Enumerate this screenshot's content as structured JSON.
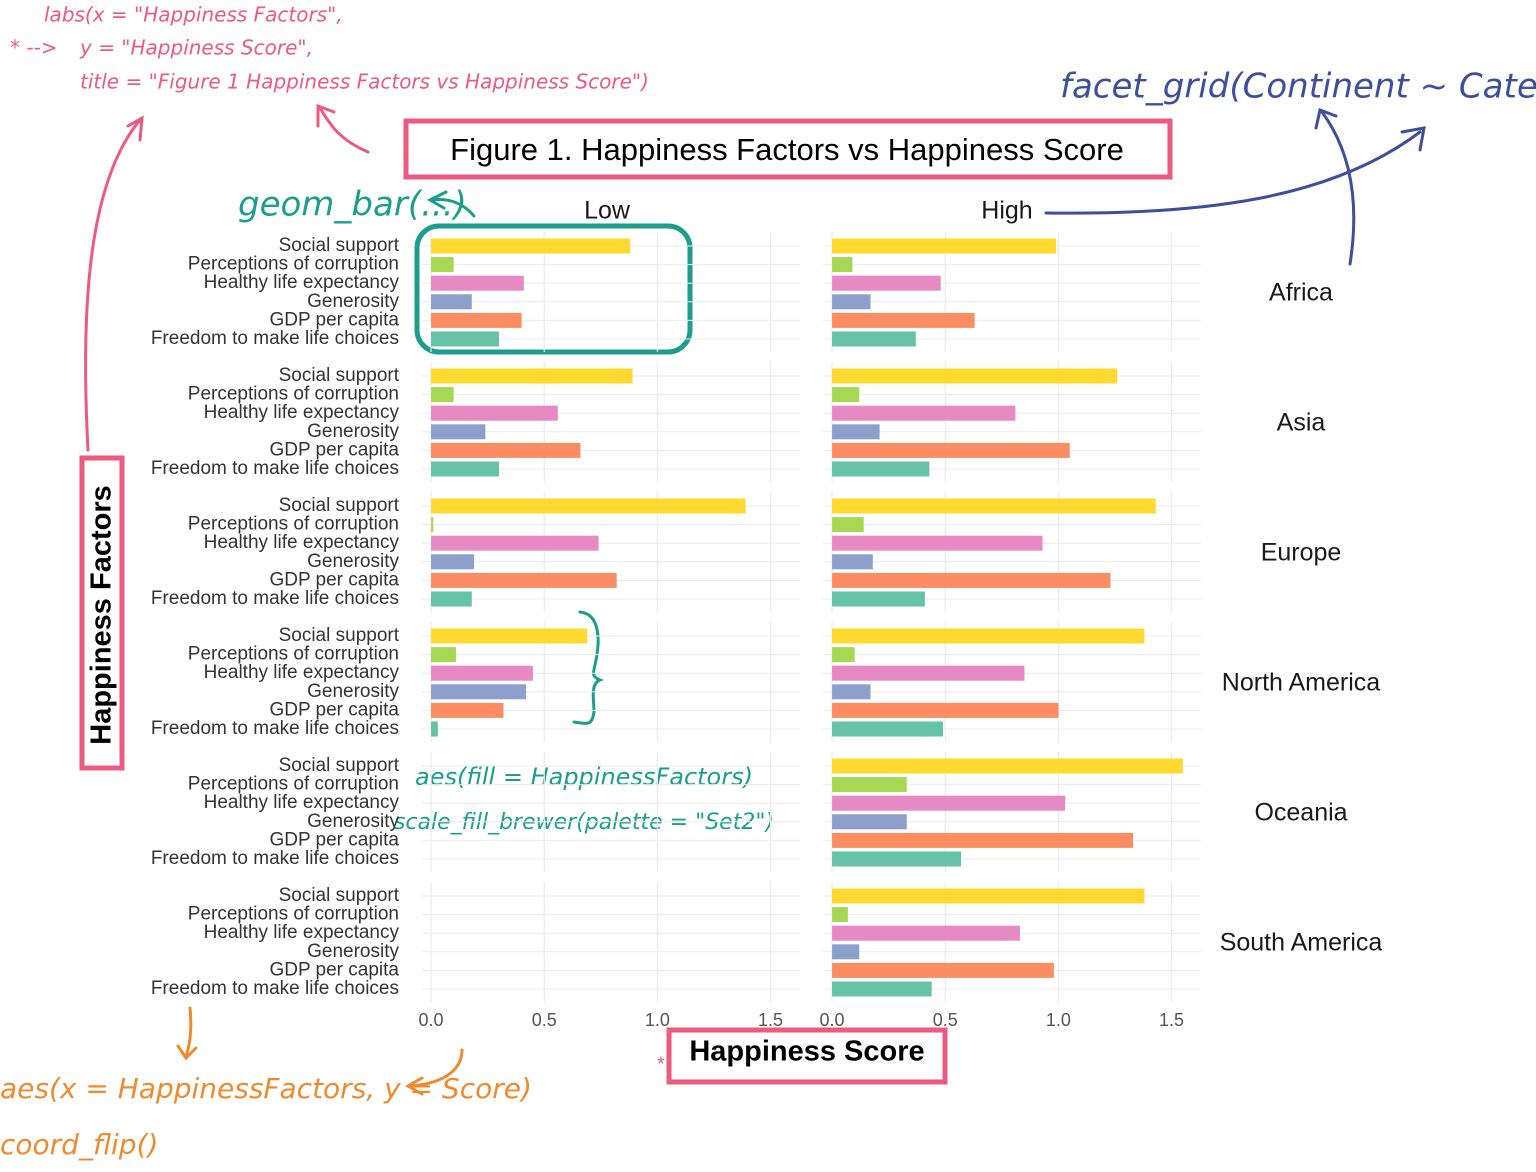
{
  "chart_data": {
    "type": "bar",
    "orientation": "horizontal",
    "title": "Figure 1. Happiness Factors vs Happiness Score",
    "x_label": "Happiness Score",
    "y_label": "Happiness Factors",
    "columns": [
      "Low",
      "High"
    ],
    "rows": [
      "Africa",
      "Asia",
      "Europe",
      "North America",
      "Oceania",
      "South America"
    ],
    "categories": [
      "Social support",
      "Perceptions of corruption",
      "Healthy life expectancy",
      "Generosity",
      "GDP per capita",
      "Freedom to make life choices"
    ],
    "colors": [
      "#ffd92f",
      "#a6d854",
      "#e78ac3",
      "#8da0cb",
      "#fc8d62",
      "#66c2a5"
    ],
    "values": [
      [
        [
          0.88,
          0.1,
          0.41,
          0.18,
          0.4,
          0.3
        ],
        [
          0.99,
          0.09,
          0.48,
          0.17,
          0.63,
          0.37
        ]
      ],
      [
        [
          0.89,
          0.1,
          0.56,
          0.24,
          0.66,
          0.3
        ],
        [
          1.26,
          0.12,
          0.81,
          0.21,
          1.05,
          0.43
        ]
      ],
      [
        [
          1.39,
          0.01,
          0.74,
          0.19,
          0.82,
          0.18
        ],
        [
          1.43,
          0.14,
          0.93,
          0.18,
          1.23,
          0.41
        ]
      ],
      [
        [
          0.69,
          0.11,
          0.45,
          0.42,
          0.32,
          0.03
        ],
        [
          1.38,
          0.1,
          0.85,
          0.17,
          1.0,
          0.49
        ]
      ],
      [
        [
          null,
          null,
          null,
          null,
          null,
          null
        ],
        [
          1.55,
          0.33,
          1.03,
          0.33,
          1.33,
          0.57
        ]
      ],
      [
        [
          null,
          null,
          null,
          null,
          null,
          null
        ],
        [
          1.38,
          0.07,
          0.83,
          0.12,
          0.98,
          0.44
        ]
      ]
    ],
    "xlim": [
      -0.04,
      1.63
    ],
    "xticks": [
      {
        "value": 0,
        "label": "0.0"
      },
      0.5,
      {
        "value": 1,
        "label": "1.0"
      },
      1.5
    ],
    "grid": true,
    "annotations": {
      "labs_x": "labs(x = \"Happiness Factors\",",
      "labs_marker": "* -->",
      "labs_y": "y = \"Happiness Score\",",
      "labs_title": "title = \"Figure 1 Happiness Factors vs Happiness Score\")",
      "facet": "facet_grid(Continent ~ Category)",
      "geom": "geom_bar(...)",
      "fill": "aes(fill = HappinessFactors)",
      "brewer": "scale_fill_brewer(palette = \"Set2\")",
      "aes": "aes(x = HappinessFactors, y = Score)",
      "flip": "coord_flip()",
      "star": "*"
    }
  }
}
